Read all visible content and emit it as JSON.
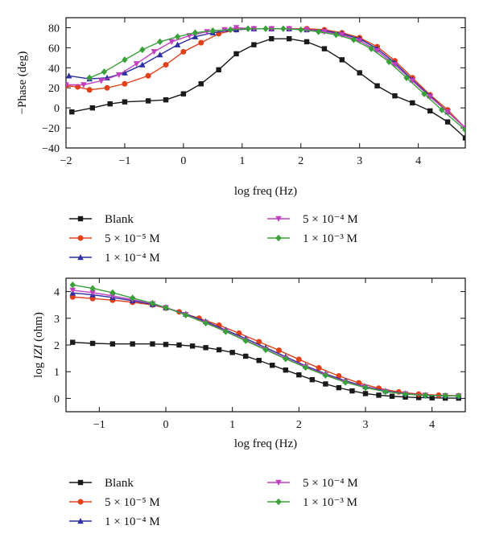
{
  "chart_data": [
    {
      "type": "line",
      "xlabel": "log freq (Hz)",
      "ylabel": "−Phase (deg)",
      "xlim": [
        -2,
        4.8
      ],
      "ylim": [
        -40,
        90
      ],
      "xticks": [
        -2,
        -1,
        0,
        1,
        2,
        3,
        4
      ],
      "yticks": [
        -40,
        -20,
        0,
        20,
        40,
        60,
        80
      ],
      "tick_labels_x": [
        "−2",
        "−1",
        "0",
        "1",
        "2",
        "3",
        "4"
      ],
      "tick_labels_y": [
        "−40",
        "−20",
        "0",
        "20",
        "40",
        "60",
        "80"
      ],
      "grid": false,
      "legend": {
        "placement": "below",
        "columns": [
          [
            "Blank",
            "5 × 10⁻⁵ M",
            "1 × 10⁻⁴ M"
          ],
          [
            "5 × 10⁻⁴ M",
            "1 × 10⁻³ M"
          ]
        ]
      },
      "series": [
        {
          "name": "Blank",
          "color": "#1a1a1a",
          "marker": "square",
          "x": [
            -1.9,
            -1.55,
            -1.25,
            -1.0,
            -0.6,
            -0.3,
            0.0,
            0.3,
            0.6,
            0.9,
            1.2,
            1.5,
            1.8,
            2.1,
            2.4,
            2.7,
            3.0,
            3.3,
            3.6,
            3.9,
            4.2,
            4.5,
            4.8
          ],
          "values": [
            -4,
            0,
            4,
            6,
            7,
            8,
            14,
            24,
            38,
            54,
            63,
            69,
            69,
            66,
            59,
            48,
            35,
            22,
            12,
            5,
            -3,
            -14,
            -30
          ]
        },
        {
          "name": "5 × 10⁻⁵ M",
          "color": "#e0401a",
          "marker": "circle",
          "x": [
            -2.0,
            -1.8,
            -1.6,
            -1.3,
            -1.0,
            -0.6,
            -0.3,
            0.0,
            0.3,
            0.6,
            0.9,
            1.2,
            1.5,
            1.8,
            2.1,
            2.4,
            2.7,
            3.0,
            3.3,
            3.6,
            3.9,
            4.2,
            4.5,
            4.8
          ],
          "values": [
            22,
            21,
            18,
            20,
            24,
            32,
            43,
            56,
            65,
            74,
            78,
            79,
            79,
            79,
            79,
            78,
            75,
            70,
            61,
            47,
            30,
            13,
            -2,
            -20
          ]
        },
        {
          "name": "1 × 10⁻⁴ M",
          "color": "#2b2fa0",
          "marker": "triangle",
          "x": [
            -1.95,
            -1.6,
            -1.3,
            -1.0,
            -0.7,
            -0.4,
            -0.1,
            0.2,
            0.5,
            0.9,
            1.2,
            1.5,
            1.8,
            2.1,
            2.4,
            2.7,
            3.0,
            3.3,
            3.6,
            3.9,
            4.2,
            4.5,
            4.8
          ],
          "values": [
            32,
            29,
            30,
            35,
            43,
            53,
            63,
            71,
            75,
            78,
            79,
            79,
            79,
            78,
            77,
            74,
            69,
            59,
            45,
            28,
            12,
            -4,
            -20
          ]
        },
        {
          "name": "5 × 10⁻⁴ M",
          "color": "#c040c0",
          "marker": "triangle-down",
          "x": [
            -2.0,
            -1.7,
            -1.4,
            -1.1,
            -0.8,
            -0.5,
            -0.2,
            0.1,
            0.4,
            0.7,
            0.9,
            1.2,
            1.5,
            1.8,
            2.1,
            2.4,
            2.7,
            3.0,
            3.3,
            3.6,
            3.9,
            4.2,
            4.5,
            4.8
          ],
          "values": [
            23,
            23,
            27,
            33,
            44,
            56,
            66,
            72,
            76,
            78,
            80,
            79,
            79,
            79,
            78,
            76,
            73,
            67,
            57,
            43,
            27,
            11,
            -4,
            -20
          ]
        },
        {
          "name": "1 × 10⁻³ M",
          "color": "#3aa03a",
          "marker": "diamond",
          "x": [
            -1.6,
            -1.35,
            -1.0,
            -0.7,
            -0.4,
            -0.1,
            0.2,
            0.5,
            0.8,
            1.1,
            1.4,
            1.7,
            2.0,
            2.3,
            2.6,
            2.9,
            3.2,
            3.5,
            3.8,
            4.1,
            4.4,
            4.8
          ],
          "values": [
            30,
            36,
            48,
            58,
            66,
            71,
            75,
            77,
            78,
            79,
            79,
            79,
            78,
            76,
            73,
            68,
            59,
            46,
            30,
            14,
            -2,
            -22
          ]
        }
      ]
    },
    {
      "type": "line",
      "xlabel": "log freq (Hz)",
      "ylabel": "log IZI (ohm)",
      "xlim": [
        -1.5,
        4.5
      ],
      "ylim": [
        -0.5,
        4.5
      ],
      "xticks": [
        -1,
        0,
        1,
        2,
        3,
        4
      ],
      "yticks": [
        0,
        1,
        2,
        3,
        4
      ],
      "tick_labels_x": [
        "−1",
        "0",
        "1",
        "2",
        "3",
        "4"
      ],
      "tick_labels_y": [
        "0",
        "1",
        "2",
        "3",
        "4"
      ],
      "grid": false,
      "legend": {
        "placement": "below",
        "columns": [
          [
            "Blank",
            "5 × 10⁻⁵ M",
            "1 × 10⁻⁴ M"
          ],
          [
            "5 × 10⁻⁴ M",
            "1 × 10⁻³ M"
          ]
        ]
      },
      "series": [
        {
          "name": "Blank",
          "color": "#1a1a1a",
          "marker": "square",
          "x": [
            -1.4,
            -1.1,
            -0.8,
            -0.5,
            -0.2,
            0.0,
            0.2,
            0.4,
            0.6,
            0.8,
            1.0,
            1.2,
            1.4,
            1.6,
            1.8,
            2.0,
            2.2,
            2.4,
            2.6,
            2.8,
            3.0,
            3.2,
            3.4,
            3.6,
            3.8,
            4.0,
            4.2,
            4.4
          ],
          "values": [
            2.1,
            2.06,
            2.04,
            2.04,
            2.04,
            2.02,
            2.0,
            1.96,
            1.9,
            1.82,
            1.72,
            1.58,
            1.42,
            1.24,
            1.06,
            0.88,
            0.7,
            0.54,
            0.4,
            0.28,
            0.18,
            0.12,
            0.08,
            0.05,
            0.03,
            0.02,
            0.01,
            0.01
          ]
        },
        {
          "name": "5 × 10⁻⁵ M",
          "color": "#e0401a",
          "marker": "circle",
          "x": [
            -1.4,
            -1.1,
            -0.8,
            -0.5,
            -0.2,
            0.0,
            0.2,
            0.5,
            0.8,
            1.1,
            1.4,
            1.7,
            2.0,
            2.3,
            2.6,
            2.9,
            3.2,
            3.5,
            3.8,
            4.1,
            4.4
          ],
          "values": [
            3.8,
            3.74,
            3.68,
            3.6,
            3.5,
            3.38,
            3.24,
            3.0,
            2.74,
            2.44,
            2.12,
            1.8,
            1.46,
            1.14,
            0.84,
            0.58,
            0.38,
            0.24,
            0.16,
            0.12,
            0.1
          ]
        },
        {
          "name": "1 × 10⁻⁴ M",
          "color": "#2b2fa0",
          "marker": "triangle",
          "x": [
            -1.4,
            -1.1,
            -0.8,
            -0.5,
            -0.2,
            0.0,
            0.3,
            0.6,
            0.9,
            1.2,
            1.5,
            1.8,
            2.1,
            2.4,
            2.7,
            3.0,
            3.3,
            3.6,
            3.9,
            4.2,
            4.4
          ],
          "values": [
            3.95,
            3.88,
            3.78,
            3.66,
            3.52,
            3.4,
            3.16,
            2.88,
            2.56,
            2.24,
            1.9,
            1.56,
            1.22,
            0.92,
            0.66,
            0.44,
            0.28,
            0.18,
            0.12,
            0.1,
            0.09
          ]
        },
        {
          "name": "5 × 10⁻⁴ M",
          "color": "#c040c0",
          "marker": "triangle-down",
          "x": [
            -1.4,
            -1.1,
            -0.8,
            -0.5,
            -0.2,
            0.0,
            0.3,
            0.6,
            0.9,
            1.2,
            1.5,
            1.8,
            2.1,
            2.4,
            2.7,
            3.0,
            3.3,
            3.6,
            3.9,
            4.2,
            4.4
          ],
          "values": [
            4.05,
            3.96,
            3.84,
            3.7,
            3.54,
            3.4,
            3.14,
            2.84,
            2.52,
            2.18,
            1.84,
            1.5,
            1.18,
            0.88,
            0.62,
            0.42,
            0.26,
            0.17,
            0.12,
            0.1,
            0.09
          ]
        },
        {
          "name": "1 × 10⁻³ M",
          "color": "#3aa03a",
          "marker": "diamond",
          "x": [
            -1.4,
            -1.1,
            -0.8,
            -0.5,
            -0.2,
            0.0,
            0.3,
            0.6,
            0.9,
            1.2,
            1.5,
            1.8,
            2.1,
            2.4,
            2.7,
            3.0,
            3.3,
            3.6,
            3.9,
            4.2,
            4.4
          ],
          "values": [
            4.25,
            4.12,
            3.96,
            3.76,
            3.56,
            3.4,
            3.12,
            2.82,
            2.5,
            2.16,
            1.82,
            1.48,
            1.16,
            0.86,
            0.6,
            0.4,
            0.25,
            0.16,
            0.11,
            0.1,
            0.09
          ]
        }
      ]
    }
  ]
}
